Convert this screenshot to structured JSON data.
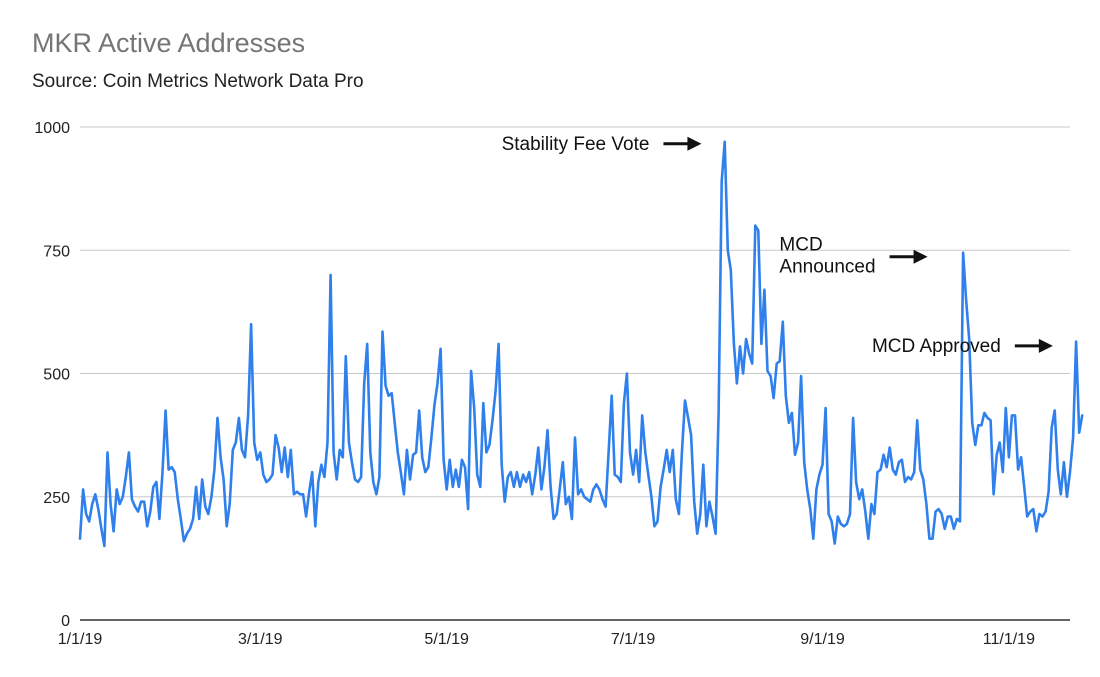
{
  "header": {
    "title": "MKR Active Addresses",
    "subtitle": "Source: Coin Metrics Network Data Pro"
  },
  "colors": {
    "line": "#2f80ed",
    "grid": "#c8c8c8",
    "axis": "#333333",
    "text": "#222222"
  },
  "annotations": [
    {
      "lines": [
        "Stability Fee Vote"
      ],
      "date": "2019-07-26",
      "value": 970
    },
    {
      "lines": [
        "MCD",
        "Announced"
      ],
      "date": "2019-10-08",
      "value": 745
    },
    {
      "lines": [
        "MCD Approved"
      ],
      "date": "2019-11-18",
      "value": 560
    }
  ],
  "chart_data": {
    "type": "line",
    "title": "MKR Active Addresses",
    "subtitle": "Source: Coin Metrics Network Data Pro",
    "xlabel": "",
    "ylabel": "",
    "ylim": [
      0,
      1000
    ],
    "yticks": [
      0,
      250,
      500,
      750,
      1000
    ],
    "xlim": [
      "2019-01-01",
      "2019-11-21"
    ],
    "xticks": [
      "1/1/19",
      "3/1/19",
      "5/1/19",
      "7/1/19",
      "9/1/19",
      "11/1/19"
    ],
    "xtick_dates": [
      "2019-01-01",
      "2019-03-01",
      "2019-05-01",
      "2019-07-01",
      "2019-09-01",
      "2019-11-01"
    ],
    "grid": true,
    "legend": "none",
    "series": [
      {
        "start_date": "2019-01-01",
        "step": "1 day",
        "values": [
          165,
          265,
          215,
          200,
          235,
          255,
          225,
          185,
          150,
          340,
          235,
          180,
          265,
          235,
          250,
          290,
          340,
          245,
          230,
          220,
          240,
          240,
          190,
          220,
          270,
          280,
          205,
          300,
          425,
          305,
          310,
          300,
          245,
          205,
          160,
          175,
          185,
          205,
          270,
          205,
          285,
          230,
          215,
          250,
          305,
          410,
          330,
          285,
          190,
          235,
          345,
          360,
          410,
          345,
          330,
          415,
          600,
          360,
          325,
          340,
          295,
          280,
          285,
          295,
          375,
          350,
          300,
          350,
          290,
          345,
          255,
          260,
          255,
          255,
          210,
          260,
          300,
          190,
          280,
          315,
          290,
          360,
          700,
          340,
          285,
          345,
          330,
          535,
          360,
          320,
          285,
          280,
          290,
          480,
          560,
          340,
          280,
          255,
          290,
          585,
          475,
          455,
          460,
          400,
          340,
          300,
          255,
          345,
          285,
          335,
          340,
          425,
          330,
          300,
          310,
          370,
          435,
          480,
          550,
          325,
          265,
          325,
          270,
          305,
          270,
          325,
          310,
          225,
          505,
          430,
          295,
          270,
          440,
          340,
          355,
          405,
          465,
          560,
          315,
          240,
          290,
          300,
          270,
          300,
          270,
          295,
          280,
          300,
          255,
          295,
          350,
          265,
          310,
          385,
          270,
          205,
          215,
          265,
          320,
          235,
          250,
          205,
          370,
          255,
          265,
          250,
          245,
          240,
          265,
          275,
          265,
          245,
          230,
          340,
          455,
          295,
          290,
          280,
          440,
          500,
          340,
          295,
          345,
          280,
          415,
          340,
          295,
          250,
          190,
          200,
          270,
          305,
          345,
          300,
          345,
          245,
          215,
          340,
          445,
          410,
          375,
          240,
          175,
          215,
          315,
          190,
          240,
          210,
          175,
          420,
          890,
          970,
          750,
          710,
          560,
          480,
          555,
          500,
          570,
          540,
          520,
          800,
          790,
          560,
          670,
          505,
          495,
          450,
          520,
          525,
          605,
          455,
          400,
          420,
          335,
          360,
          495,
          320,
          265,
          225,
          165,
          265,
          295,
          315,
          430,
          215,
          200,
          155,
          210,
          195,
          190,
          195,
          215,
          410,
          280,
          245,
          265,
          220,
          165,
          235,
          215,
          300,
          305,
          335,
          310,
          350,
          305,
          295,
          320,
          325,
          280,
          290,
          285,
          300,
          405,
          305,
          285,
          235,
          165,
          165,
          220,
          225,
          215,
          185,
          210,
          210,
          185,
          205,
          200,
          745,
          650,
          570,
          400,
          355,
          395,
          395,
          420,
          410,
          405,
          255,
          335,
          360,
          300,
          430,
          330,
          415,
          415,
          305,
          330,
          270,
          210,
          220,
          225,
          180,
          215,
          210,
          220,
          260,
          390,
          425,
          305,
          255,
          320,
          250,
          300,
          370,
          565,
          380,
          415
        ]
      }
    ]
  }
}
